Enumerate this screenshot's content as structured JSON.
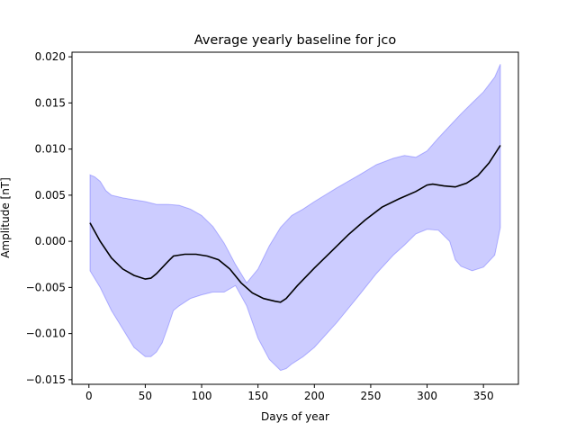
{
  "chart_data": {
    "type": "line",
    "title": "Average yearly baseline for jco",
    "xlabel": "Days of year",
    "ylabel": "Amplitude [nT]",
    "xlim": [
      -15,
      381
    ],
    "ylim": [
      -0.0155,
      0.0205
    ],
    "xticks": [
      0,
      50,
      100,
      150,
      200,
      250,
      300,
      350
    ],
    "yticks": [
      -0.015,
      -0.01,
      -0.005,
      0.0,
      0.005,
      0.01,
      0.015,
      0.02
    ],
    "ytick_labels": [
      "−0.015",
      "−0.010",
      "−0.005",
      "0.000",
      "0.005",
      "0.010",
      "0.015",
      "0.020"
    ],
    "grid": false,
    "legend": "none",
    "colors": {
      "line": "#000000",
      "band": "#0000ff",
      "band_opacity": 0.2
    },
    "series": [
      {
        "role": "mean",
        "x": [
          1,
          10,
          20,
          30,
          40,
          50,
          55,
          60,
          70,
          75,
          85,
          95,
          105,
          115,
          125,
          135,
          145,
          155,
          165,
          170,
          175,
          185,
          200,
          215,
          230,
          245,
          260,
          275,
          290,
          300,
          305,
          315,
          325,
          335,
          345,
          355,
          365
        ],
        "y": [
          0.002,
          0.0,
          -0.0018,
          -0.003,
          -0.0037,
          -0.0041,
          -0.004,
          -0.0035,
          -0.0022,
          -0.0016,
          -0.0014,
          -0.0014,
          -0.0016,
          -0.002,
          -0.003,
          -0.0045,
          -0.0056,
          -0.0062,
          -0.0065,
          -0.0066,
          -0.0062,
          -0.0048,
          -0.0029,
          -0.0011,
          0.0007,
          0.0023,
          0.0037,
          0.0046,
          0.0054,
          0.0061,
          0.0062,
          0.006,
          0.0059,
          0.0063,
          0.0071,
          0.0085,
          0.0104
        ]
      },
      {
        "role": "upper",
        "x": [
          1,
          5,
          10,
          15,
          20,
          30,
          40,
          50,
          60,
          70,
          80,
          90,
          100,
          110,
          120,
          130,
          140,
          150,
          160,
          170,
          180,
          190,
          200,
          220,
          240,
          255,
          270,
          280,
          290,
          300,
          310,
          320,
          330,
          340,
          350,
          360,
          365
        ],
        "y": [
          0.0072,
          0.007,
          0.0065,
          0.0055,
          0.005,
          0.0047,
          0.0045,
          0.0043,
          0.004,
          0.004,
          0.0039,
          0.0035,
          0.0028,
          0.0016,
          -0.0002,
          -0.0025,
          -0.0045,
          -0.003,
          -0.0005,
          0.0015,
          0.0028,
          0.0035,
          0.0043,
          0.0058,
          0.0072,
          0.0083,
          0.009,
          0.0093,
          0.0091,
          0.0098,
          0.0112,
          0.0125,
          0.0138,
          0.015,
          0.0162,
          0.0178,
          0.0192
        ]
      },
      {
        "role": "lower",
        "x": [
          1,
          10,
          20,
          30,
          40,
          50,
          55,
          60,
          65,
          70,
          75,
          80,
          90,
          100,
          110,
          120,
          130,
          140,
          150,
          160,
          170,
          175,
          180,
          190,
          200,
          220,
          240,
          255,
          270,
          280,
          290,
          300,
          310,
          320,
          325,
          330,
          340,
          350,
          360,
          365
        ],
        "y": [
          -0.0032,
          -0.005,
          -0.0075,
          -0.0095,
          -0.0115,
          -0.0125,
          -0.0125,
          -0.012,
          -0.011,
          -0.0093,
          -0.0075,
          -0.007,
          -0.0062,
          -0.0058,
          -0.0055,
          -0.0055,
          -0.0048,
          -0.007,
          -0.0105,
          -0.0128,
          -0.014,
          -0.0138,
          -0.0133,
          -0.0125,
          -0.0115,
          -0.0088,
          -0.0058,
          -0.0035,
          -0.0015,
          -0.0004,
          0.0008,
          0.0013,
          0.0012,
          0.0,
          -0.002,
          -0.0027,
          -0.0032,
          -0.0028,
          -0.0015,
          0.0015
        ]
      }
    ]
  }
}
